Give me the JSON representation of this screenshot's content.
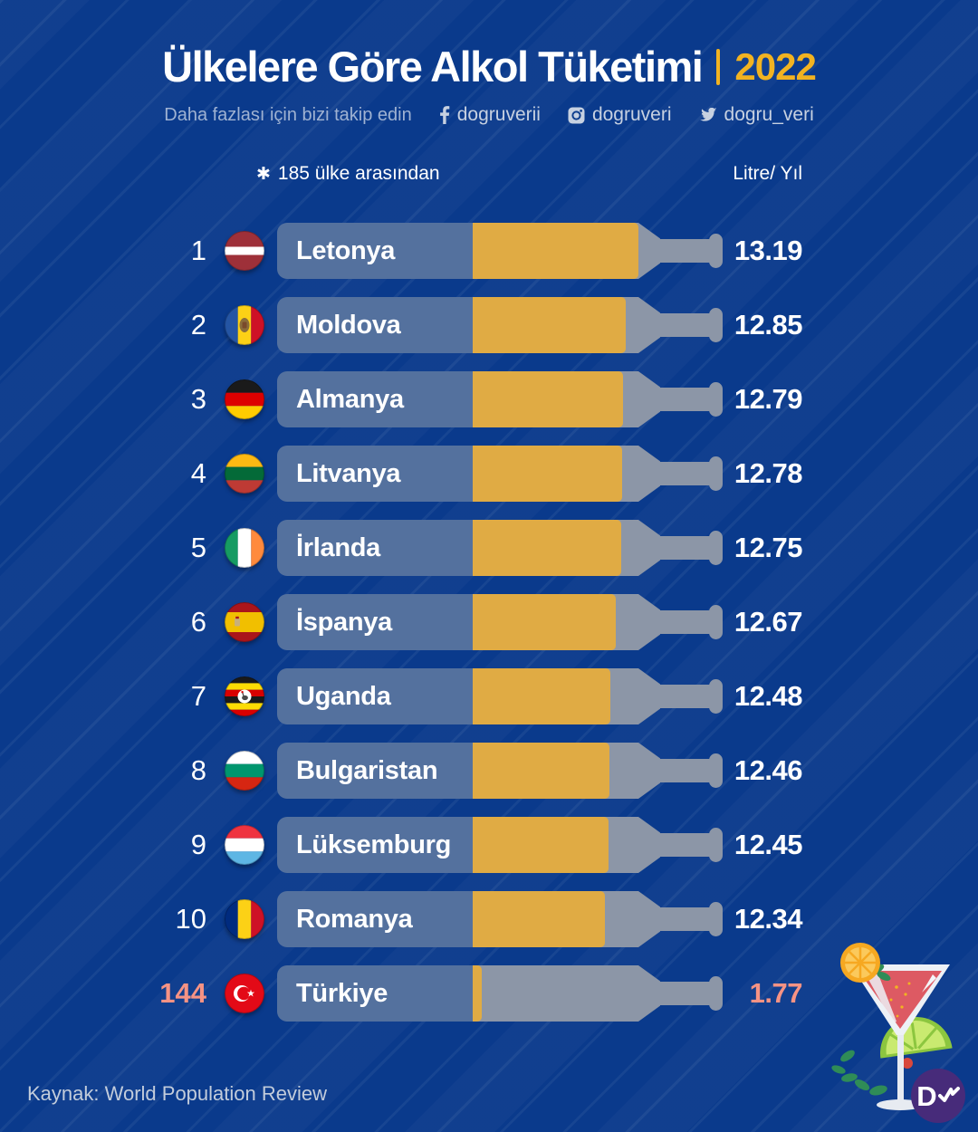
{
  "header": {
    "title": "Ülkelere Göre Alkol Tüketimi",
    "year": "2022",
    "follow_text": "Daha fazlası için bizi takip edin",
    "socials": [
      {
        "icon": "facebook-icon",
        "handle": "dogruverii"
      },
      {
        "icon": "instagram-icon",
        "handle": "dogruveri"
      },
      {
        "icon": "twitter-icon",
        "handle": "dogru_veri"
      }
    ]
  },
  "table_header": {
    "note_icon": "✱",
    "note": "185 ülke arasından",
    "unit": "Litre/ Yıl"
  },
  "footer": {
    "source": "Kaynak: World Population Review"
  },
  "brand": {
    "logo_text": "D"
  },
  "colors": {
    "background": "#0A3A8C",
    "accent_yellow": "#F2B321",
    "bar_fill": "#E0AB44",
    "bottle_gray": "#8C96A7",
    "label_band_blue": "#54719E",
    "highlight_salmon": "#F69384",
    "logo_purple": "#472B7A"
  },
  "chart_data": {
    "type": "bar",
    "title": "Ülkelere Göre Alkol Tüketimi",
    "year": "2022",
    "unit": "Litre/ Yıl",
    "note": "185 ülke arasından",
    "source": "World Population Review",
    "xlim": [
      0,
      13.19
    ],
    "rows": [
      {
        "rank": "1",
        "country": "Letonya",
        "flag": "lv",
        "value": "13.19",
        "fill_pct": 100,
        "highlight": false
      },
      {
        "rank": "2",
        "country": "Moldova",
        "flag": "md",
        "value": "12.85",
        "fill_pct": 92.3,
        "highlight": false
      },
      {
        "rank": "3",
        "country": "Almanya",
        "flag": "de",
        "value": "12.79",
        "fill_pct": 90.7,
        "highlight": false
      },
      {
        "rank": "4",
        "country": "Litvanya",
        "flag": "lt",
        "value": "12.78",
        "fill_pct": 90.2,
        "highlight": false
      },
      {
        "rank": "5",
        "country": "İrlanda",
        "flag": "ie",
        "value": "12.75",
        "fill_pct": 89.6,
        "highlight": false
      },
      {
        "rank": "6",
        "country": "İspanya",
        "flag": "es",
        "value": "12.67",
        "fill_pct": 86.3,
        "highlight": false
      },
      {
        "rank": "7",
        "country": "Uganda",
        "flag": "ug",
        "value": "12.48",
        "fill_pct": 83.1,
        "highlight": false
      },
      {
        "rank": "8",
        "country": "Bulgaristan",
        "flag": "bg",
        "value": "12.46",
        "fill_pct": 82.5,
        "highlight": false
      },
      {
        "rank": "9",
        "country": "Lüksemburg",
        "flag": "lu",
        "value": "12.45",
        "fill_pct": 82.0,
        "highlight": false
      },
      {
        "rank": "10",
        "country": "Romanya",
        "flag": "ro",
        "value": "12.34",
        "fill_pct": 79.8,
        "highlight": false
      },
      {
        "rank": "144",
        "country": "Türkiye",
        "flag": "tr",
        "value": "1.77",
        "fill_pct": 5.5,
        "highlight": true
      }
    ]
  }
}
